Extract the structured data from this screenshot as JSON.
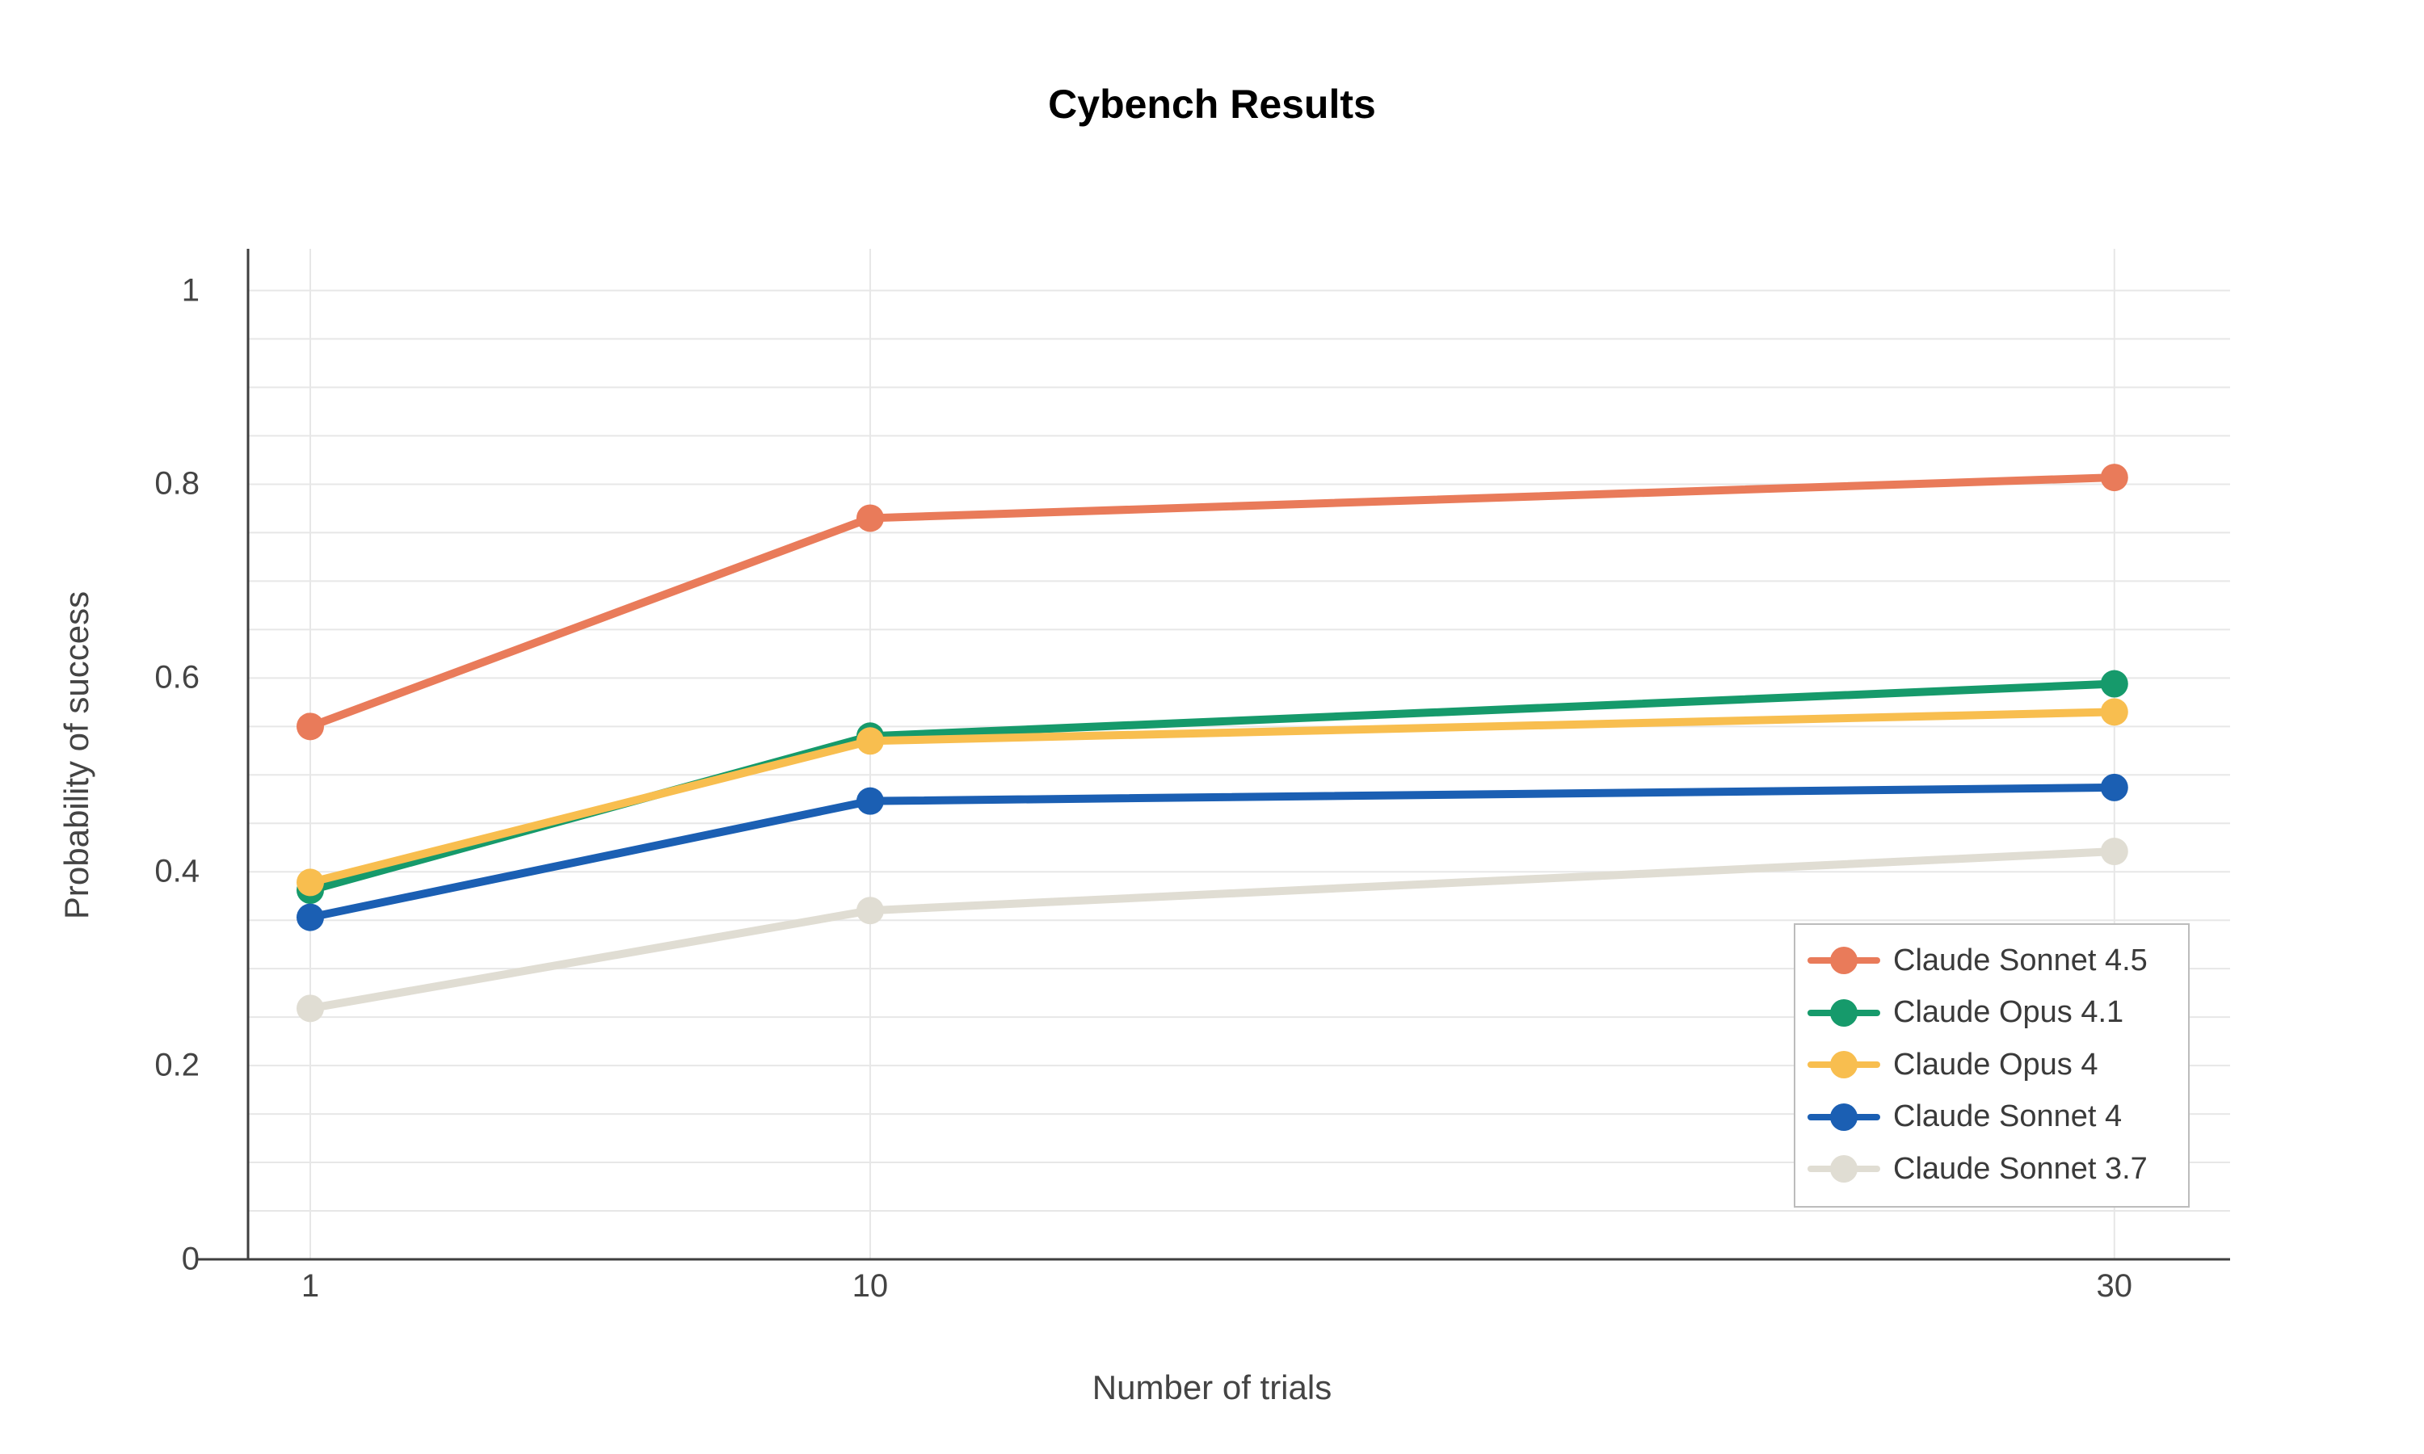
{
  "title": "Cybench Results",
  "chart_data": {
    "type": "line",
    "title": "Cybench Results",
    "xlabel": "Number of trials",
    "ylabel": "Probability of success",
    "x": [
      1,
      10,
      30
    ],
    "x_tick_labels": [
      "1",
      "10",
      "30"
    ],
    "y_ticks": [
      0,
      0.2,
      0.4,
      0.6,
      0.8,
      1
    ],
    "y_tick_labels": [
      "0",
      "0.2",
      "0.4",
      "0.6",
      "0.8",
      "1"
    ],
    "xlim": [
      0,
      31.86
    ],
    "ylim": [
      0,
      1.043
    ],
    "y_minor_step": 0.05,
    "grid": true,
    "legend_position": "bottom-right",
    "series": [
      {
        "name": "Claude Sonnet 4.5",
        "color": "#E97B5A",
        "values": [
          0.55,
          0.765,
          0.807
        ]
      },
      {
        "name": "Claude Opus 4.1",
        "color": "#169A6B",
        "values": [
          0.381,
          0.54,
          0.594
        ]
      },
      {
        "name": "Claude Opus 4",
        "color": "#F8BE4F",
        "values": [
          0.389,
          0.535,
          0.565
        ]
      },
      {
        "name": "Claude Sonnet 4",
        "color": "#1B5FB3",
        "values": [
          0.353,
          0.473,
          0.487
        ]
      },
      {
        "name": "Claude Sonnet 3.7",
        "color": "#E0DDD3",
        "values": [
          0.259,
          0.36,
          0.421
        ]
      }
    ],
    "colors": {
      "axis_line": "#3F3F3F",
      "tick_text": "#444444",
      "grid": "#E7E7E7",
      "legend_border": "#BCBCBC",
      "title_text": "#000000"
    }
  }
}
